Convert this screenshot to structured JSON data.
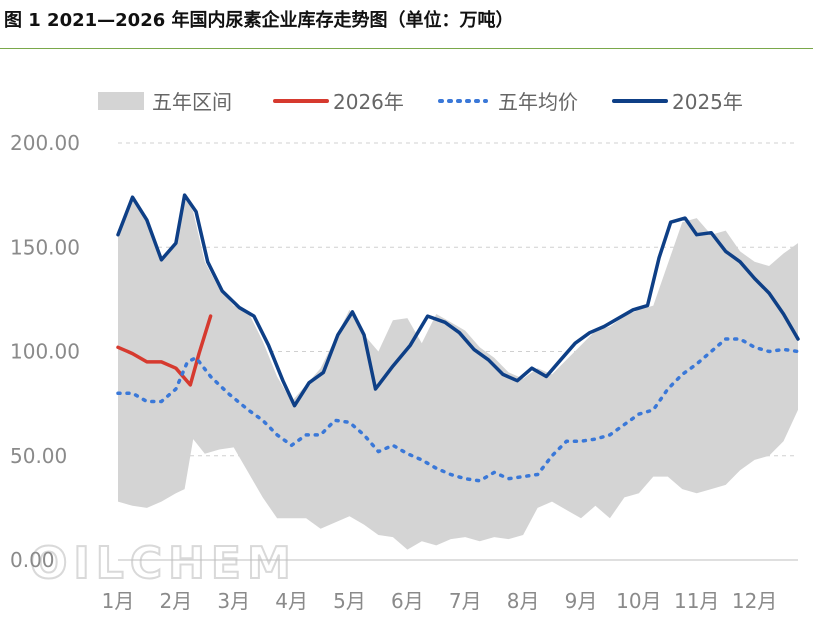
{
  "title": "图 1 2021—2026 年国内尿素企业库存走势图（单位：万吨）",
  "watermark": "OILCHEM",
  "colors": {
    "band": "#d4d4d4",
    "y2026": "#d63a2f",
    "avg5": "#3a78d8",
    "y2025": "#0e3f86",
    "grid": "#d0d0d0"
  },
  "chart_data": {
    "type": "line",
    "title": "",
    "xlabel": "",
    "ylabel": "",
    "ylim": [
      0,
      200
    ],
    "xlim": [
      1,
      12.75
    ],
    "grid": "horizontal dashed",
    "legend_position": "top",
    "x_ticks": [
      1,
      2,
      3,
      4,
      5,
      6,
      7,
      8,
      9,
      10,
      11,
      12
    ],
    "x_tick_labels": [
      "1月",
      "2月",
      "3月",
      "4月",
      "5月",
      "6月",
      "7月",
      "8月",
      "9月",
      "10月",
      "11月",
      "12月"
    ],
    "y_ticks": [
      0,
      50,
      100,
      150,
      200
    ],
    "y_tick_labels": [
      "0.00",
      "50.00",
      "100.00",
      "150.00",
      "200.00"
    ],
    "band": {
      "name": "五年区间",
      "x": [
        1.0,
        1.25,
        1.5,
        1.75,
        2.0,
        2.15,
        2.3,
        2.5,
        2.75,
        3.0,
        3.25,
        3.5,
        3.75,
        4.0,
        4.25,
        4.5,
        4.75,
        5.0,
        5.25,
        5.5,
        5.75,
        6.0,
        6.25,
        6.5,
        6.75,
        7.0,
        7.25,
        7.5,
        7.75,
        8.0,
        8.25,
        8.5,
        8.75,
        9.0,
        9.25,
        9.5,
        9.75,
        10.0,
        10.25,
        10.5,
        10.75,
        11.0,
        11.25,
        11.5,
        11.75,
        12.0,
        12.25,
        12.5,
        12.75
      ],
      "low": [
        28,
        26,
        25,
        28,
        32,
        34,
        58,
        51,
        53,
        54,
        42,
        30,
        20,
        20,
        20,
        15,
        18,
        21,
        17,
        12,
        11,
        5,
        9,
        7,
        10,
        11,
        9,
        11,
        10,
        12,
        25,
        28,
        24,
        20,
        26,
        20,
        30,
        32,
        40,
        40,
        34,
        32,
        34,
        36,
        43,
        48,
        50,
        57,
        72
      ],
      "high": [
        155,
        174,
        164,
        145,
        152,
        175,
        167,
        143,
        130,
        122,
        119,
        105,
        88,
        76,
        84,
        92,
        106,
        120,
        108,
        100,
        115,
        116,
        104,
        118,
        114,
        110,
        102,
        97,
        90,
        87,
        92,
        89,
        96,
        103,
        110,
        112,
        117,
        120,
        122,
        142,
        162,
        164,
        156,
        158,
        148,
        143,
        141,
        147,
        152
      ]
    },
    "series": [
      {
        "name": "2026年",
        "x": [
          1.0,
          1.25,
          1.5,
          1.75,
          2.0,
          2.25,
          2.4,
          2.6
        ],
        "values": [
          102,
          99,
          95,
          95,
          92,
          84,
          99,
          117
        ]
      },
      {
        "name": "五年均价",
        "x": [
          1.0,
          1.25,
          1.5,
          1.75,
          2.0,
          2.2,
          2.35,
          2.6,
          2.9,
          3.25,
          3.5,
          3.75,
          4.0,
          4.25,
          4.5,
          4.75,
          5.0,
          5.25,
          5.5,
          5.75,
          6.0,
          6.25,
          6.5,
          6.75,
          7.0,
          7.25,
          7.5,
          7.75,
          8.0,
          8.25,
          8.5,
          8.75,
          9.0,
          9.25,
          9.5,
          9.75,
          10.0,
          10.25,
          10.5,
          10.75,
          11.0,
          11.25,
          11.5,
          11.75,
          12.0,
          12.25,
          12.5,
          12.75
        ],
        "values": [
          80,
          80,
          76,
          76,
          82,
          95,
          97,
          88,
          80,
          72,
          67,
          60,
          55,
          60,
          60,
          67,
          66,
          60,
          52,
          55,
          51,
          48,
          44,
          41,
          39,
          38,
          42,
          39,
          40,
          41,
          50,
          57,
          57,
          58,
          60,
          65,
          70,
          72,
          82,
          89,
          94,
          100,
          106,
          106,
          102,
          100,
          101,
          100
        ]
      },
      {
        "name": "2025年",
        "x": [
          1.0,
          1.25,
          1.5,
          1.75,
          2.0,
          2.15,
          2.35,
          2.55,
          2.8,
          3.1,
          3.35,
          3.6,
          3.85,
          4.05,
          4.3,
          4.55,
          4.8,
          5.05,
          5.25,
          5.45,
          5.75,
          6.05,
          6.35,
          6.65,
          6.9,
          7.15,
          7.4,
          7.65,
          7.9,
          8.15,
          8.4,
          8.65,
          8.9,
          9.15,
          9.4,
          9.65,
          9.9,
          10.15,
          10.35,
          10.55,
          10.8,
          11.0,
          11.25,
          11.5,
          11.75,
          12.0,
          12.25,
          12.5,
          12.75
        ],
        "values": [
          156,
          174,
          163,
          144,
          152,
          175,
          167,
          143,
          129,
          121,
          117,
          103,
          86,
          74,
          85,
          90,
          108,
          119,
          108,
          82,
          93,
          103,
          117,
          114,
          109,
          101,
          96,
          89,
          86,
          92,
          88,
          96,
          104,
          109,
          112,
          116,
          120,
          122,
          145,
          162,
          164,
          156,
          157,
          148,
          143,
          135,
          128,
          118,
          106
        ]
      }
    ]
  }
}
